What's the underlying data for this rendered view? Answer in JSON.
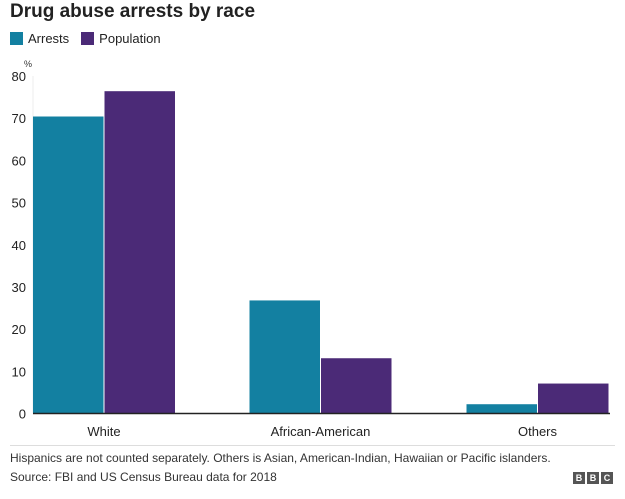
{
  "chart_data": {
    "type": "bar",
    "title": "Drug abuse arrests by race",
    "ylabel": "%",
    "xlabel": "",
    "ylim": [
      0,
      80
    ],
    "yticks": [
      0,
      10,
      20,
      30,
      40,
      50,
      60,
      70,
      80
    ],
    "categories": [
      "White",
      "African-American",
      "Others"
    ],
    "series": [
      {
        "name": "Arrests",
        "color": "#1380A1",
        "values": [
          70.4,
          26.8,
          2.2
        ]
      },
      {
        "name": "Population",
        "color": "#4B2A77",
        "values": [
          76.4,
          13.1,
          7.1
        ]
      }
    ],
    "legend_position": "top-left",
    "grid": false
  },
  "footer": {
    "note": "Hispanics are not counted separately. Others is Asian, American-Indian, Hawaiian or Pacific islanders.",
    "source": "Source: FBI and US Census Bureau data for 2018",
    "logo": [
      "B",
      "B",
      "C"
    ]
  }
}
